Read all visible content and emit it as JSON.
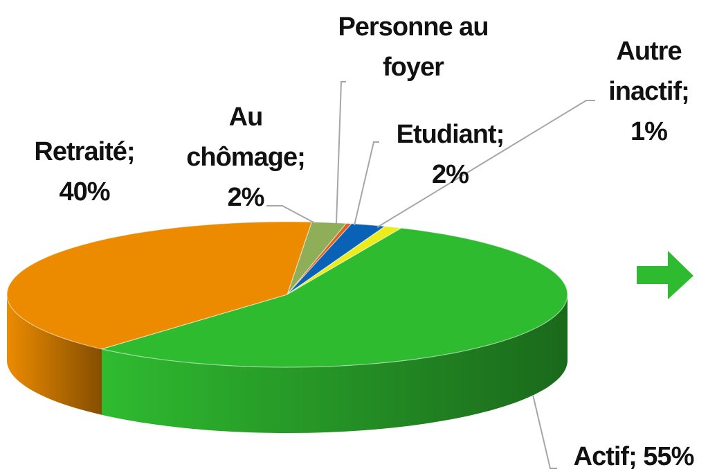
{
  "chart_data": {
    "type": "pie3d",
    "categories": [
      "Au chômage;",
      "Personne au foyer",
      "Etudiant;",
      "Autre inactif;",
      "Actif;",
      "Retraité;"
    ],
    "values": [
      2,
      0.3,
      2,
      1,
      55,
      40
    ],
    "value_labels": [
      "2%",
      null,
      "2%",
      "1%",
      "55%",
      "40%"
    ],
    "colors": [
      "#8fae58",
      "#e0601a",
      "#0a62b6",
      "#ecec1c",
      "#2fbb30",
      "#ec8b00"
    ]
  }
}
